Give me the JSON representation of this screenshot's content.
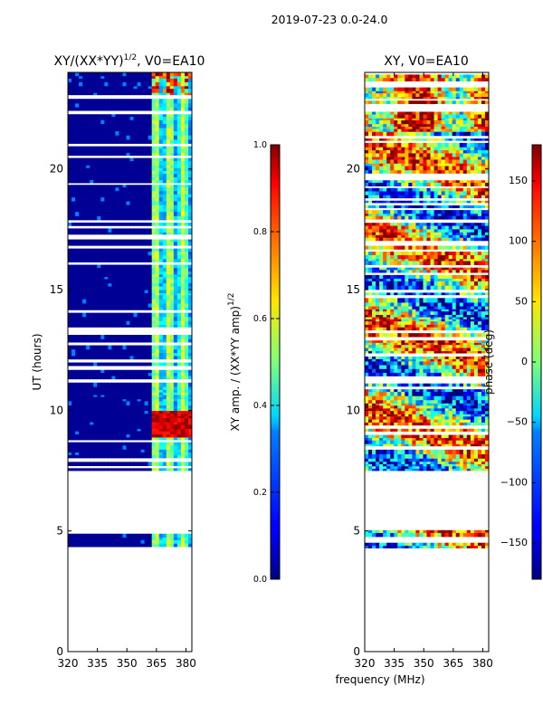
{
  "chart_data": [
    {
      "type": "heatmap",
      "title": "XY/(XX*YY)",
      "title_exponent": "1/2",
      "title_suffix": ", V0=EA10",
      "xlabel": "",
      "ylabel": "UT (hours)",
      "xlim": [
        320,
        383
      ],
      "ylim": [
        0,
        24
      ],
      "xticks": [
        320,
        335,
        350,
        365,
        380
      ],
      "yticks": [
        0,
        5,
        10,
        15,
        20
      ],
      "data_coverage_ut": [
        4.2,
        24.0
      ],
      "gap_ut": [
        5.0,
        7.5
      ],
      "high_amplitude_band_mhz": [
        362,
        383
      ],
      "colorbar": {
        "label": "XY amp. / (XX*YY amp)",
        "label_exponent": "1/2",
        "range": [
          0.0,
          1.0
        ],
        "ticks": [
          "0.0",
          "0.2",
          "0.4",
          "0.6",
          "0.8",
          "1.0"
        ]
      }
    },
    {
      "type": "heatmap",
      "title": "XY, V0=EA10",
      "xlabel": "frequency (MHz)",
      "ylabel": "",
      "xlim": [
        320,
        383
      ],
      "ylim": [
        0,
        24
      ],
      "xticks": [
        320,
        335,
        350,
        365,
        380
      ],
      "yticks": [
        0,
        5,
        10,
        15,
        20
      ],
      "data_coverage_ut": [
        4.2,
        24.0
      ],
      "gap_ut": [
        5.0,
        7.5
      ],
      "colorbar": {
        "label": "phase (deg)",
        "range": [
          -180,
          180
        ],
        "ticks": [
          "150",
          "100",
          "50",
          "0",
          "−50",
          "−100",
          "−150"
        ],
        "tick_values": [
          150,
          100,
          50,
          0,
          -50,
          -100,
          -150
        ]
      }
    }
  ],
  "suptitle": "2019-07-23 0.0-24.0"
}
